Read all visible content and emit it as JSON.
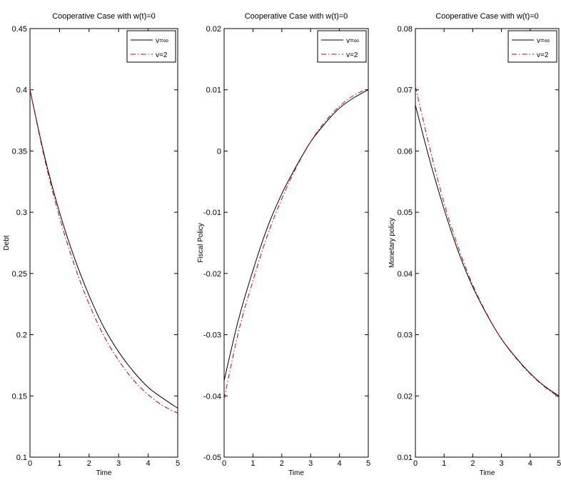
{
  "chart_data": [
    {
      "type": "line",
      "title": "Cooperative Case with w(t)=0",
      "xlabel": "Time",
      "ylabel": "Debt",
      "xlim": [
        0,
        5
      ],
      "ylim": [
        0.1,
        0.45
      ],
      "xticks": [
        "0",
        "1",
        "2",
        "3",
        "4",
        "5"
      ],
      "yticks": [
        "0.1",
        "0.15",
        "0.2",
        "0.25",
        "0.3",
        "0.35",
        "0.4",
        "0.45"
      ],
      "x": [
        0,
        0.5,
        1,
        1.5,
        2,
        2.5,
        3,
        3.5,
        4,
        4.5,
        5
      ],
      "series": [
        {
          "name": "v=∞",
          "color": "#000000",
          "style": "solid",
          "values": [
            0.4,
            0.345,
            0.3,
            0.263,
            0.232,
            0.206,
            0.186,
            0.17,
            0.157,
            0.148,
            0.14
          ]
        },
        {
          "name": "v=2",
          "color": "#cc0000",
          "style": "dashdot",
          "values": [
            0.4,
            0.343,
            0.296,
            0.257,
            0.225,
            0.199,
            0.179,
            0.163,
            0.151,
            0.142,
            0.136
          ]
        }
      ],
      "legend": "top-right",
      "grid": false
    },
    {
      "type": "line",
      "title": "Cooperative Case with w(t)=0",
      "xlabel": "Time",
      "ylabel": "Fiscal Policy",
      "xlim": [
        0,
        5
      ],
      "ylim": [
        -0.05,
        0.02
      ],
      "xticks": [
        "0",
        "1",
        "2",
        "3",
        "4",
        "5"
      ],
      "yticks": [
        "-0.05",
        "-0.04",
        "-0.03",
        "-0.02",
        "-0.01",
        "0",
        "0.01",
        "0.02"
      ],
      "x": [
        0,
        0.5,
        1,
        1.5,
        2,
        2.5,
        3,
        3.5,
        4,
        4.5,
        5
      ],
      "series": [
        {
          "name": "v=∞",
          "color": "#000000",
          "style": "solid",
          "values": [
            -0.0375,
            -0.0275,
            -0.0195,
            -0.0125,
            -0.007,
            -0.0025,
            0.0015,
            0.0045,
            0.007,
            0.0087,
            0.01
          ]
        },
        {
          "name": "v=2",
          "color": "#cc0000",
          "style": "dashdot",
          "values": [
            -0.0405,
            -0.0295,
            -0.0212,
            -0.0138,
            -0.0078,
            -0.0027,
            0.0015,
            0.0048,
            0.0073,
            0.0091,
            0.0102
          ]
        }
      ],
      "legend": "top-right",
      "grid": false
    },
    {
      "type": "line",
      "title": "Cooperative Case with w(t)=0",
      "xlabel": "Time",
      "ylabel": "Monetary policy",
      "xlim": [
        0,
        5
      ],
      "ylim": [
        0.01,
        0.08
      ],
      "xticks": [
        "0",
        "1",
        "2",
        "3",
        "4",
        "5"
      ],
      "yticks": [
        "0.01",
        "0.02",
        "0.03",
        "0.04",
        "0.05",
        "0.06",
        "0.07",
        "0.08"
      ],
      "x": [
        0,
        0.5,
        1,
        1.5,
        2,
        2.5,
        3,
        3.5,
        4,
        4.5,
        5
      ],
      "series": [
        {
          "name": "v=∞",
          "color": "#000000",
          "style": "solid",
          "values": [
            0.0675,
            0.0585,
            0.0505,
            0.0435,
            0.0378,
            0.0332,
            0.0293,
            0.0263,
            0.0237,
            0.0216,
            0.02
          ]
        },
        {
          "name": "v=2",
          "color": "#cc0000",
          "style": "dashdot",
          "values": [
            0.0705,
            0.0605,
            0.0515,
            0.0442,
            0.0381,
            0.0333,
            0.0293,
            0.0262,
            0.0236,
            0.0215,
            0.0198
          ]
        }
      ],
      "legend": "top-right",
      "grid": false
    }
  ]
}
